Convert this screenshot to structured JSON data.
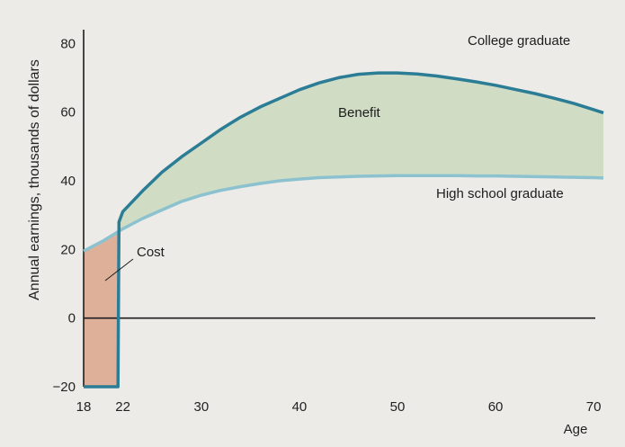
{
  "chart_data": {
    "type": "line",
    "title": "",
    "xlabel": "Age",
    "ylabel": "Annual earnings, thousands of dollars",
    "xlim": [
      18,
      71
    ],
    "ylim": [
      -20,
      84
    ],
    "x_ticks": [
      18,
      22,
      30,
      40,
      50,
      60,
      70
    ],
    "y_ticks": [
      -20,
      0,
      20,
      40,
      60,
      80
    ],
    "grid": false,
    "legend": "none",
    "series": [
      {
        "name": "College graduate",
        "color": "#2b7d96",
        "x": [
          18,
          21.5,
          21.6,
          22,
          24,
          26,
          28,
          30,
          32,
          34,
          36,
          38,
          40,
          42,
          44,
          46,
          48,
          50,
          52,
          54,
          56,
          58,
          60,
          62,
          64,
          66,
          68,
          70,
          71
        ],
        "y": [
          -20,
          -20,
          28,
          31,
          37,
          42.5,
          47,
          51,
          55,
          58.5,
          61.5,
          64,
          66.5,
          68.5,
          70,
          71,
          71.4,
          71.4,
          71.1,
          70.5,
          69.7,
          68.8,
          67.8,
          66.6,
          65.4,
          64,
          62.5,
          60.7,
          59.8
        ]
      },
      {
        "name": "High school graduate",
        "color": "#8cc2cf",
        "x": [
          18,
          20,
          22,
          24,
          26,
          28,
          30,
          32,
          34,
          36,
          38,
          40,
          42,
          44,
          46,
          48,
          50,
          52,
          54,
          56,
          58,
          60,
          62,
          64,
          66,
          68,
          70,
          71
        ],
        "y": [
          19.5,
          22.5,
          26,
          29,
          31.5,
          34,
          35.8,
          37.2,
          38.3,
          39.2,
          40,
          40.5,
          40.9,
          41.1,
          41.3,
          41.4,
          41.5,
          41.5,
          41.5,
          41.5,
          41.4,
          41.4,
          41.3,
          41.2,
          41.1,
          41,
          40.9,
          40.8
        ]
      }
    ],
    "areas": [
      {
        "label": "Cost",
        "color": "#dca68c"
      },
      {
        "label": "Benefit",
        "color": "#cddcc0"
      }
    ],
    "annotations": [
      "Cost",
      "Benefit"
    ]
  }
}
